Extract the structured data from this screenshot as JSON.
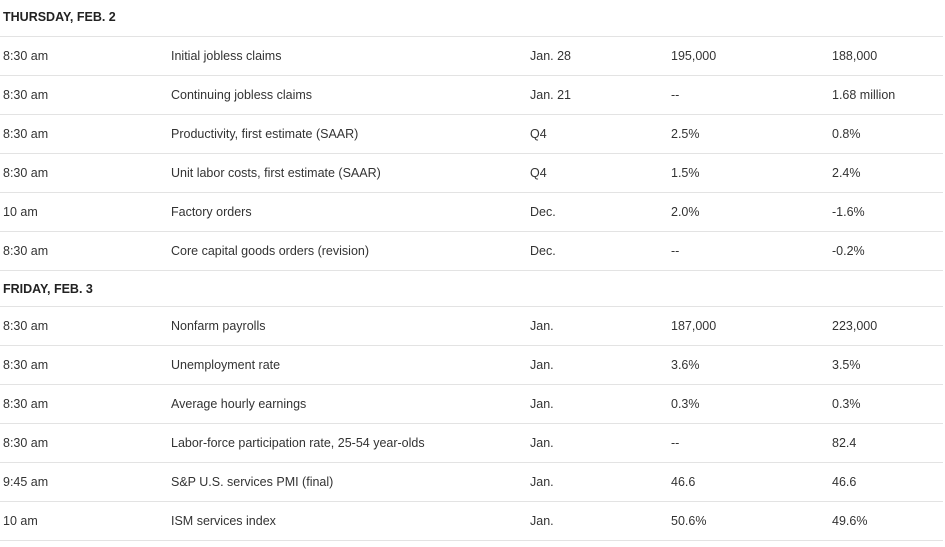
{
  "days": [
    {
      "header": "THURSDAY, FEB. 2",
      "rows": [
        {
          "time": "8:30 am",
          "report": "Initial jobless claims",
          "period": "Jan. 28",
          "median": "195,000",
          "previous": "188,000"
        },
        {
          "time": "8:30 am",
          "report": "Continuing jobless claims",
          "period": "Jan. 21",
          "median": "--",
          "previous": "1.68 million"
        },
        {
          "time": "8:30 am",
          "report": "Productivity, first estimate (SAAR)",
          "period": "Q4",
          "median": "2.5%",
          "previous": "0.8%"
        },
        {
          "time": "8:30 am",
          "report": "Unit labor costs, first estimate (SAAR)",
          "period": "Q4",
          "median": "1.5%",
          "previous": "2.4%"
        },
        {
          "time": "10 am",
          "report": "Factory orders",
          "period": "Dec.",
          "median": "2.0%",
          "previous": "-1.6%"
        },
        {
          "time": "8:30 am",
          "report": "Core capital goods orders (revision)",
          "period": "Dec.",
          "median": "--",
          "previous": "-0.2%"
        }
      ]
    },
    {
      "header": "FRIDAY, FEB. 3",
      "rows": [
        {
          "time": "8:30 am",
          "report": "Nonfarm payrolls",
          "period": "Jan.",
          "median": "187,000",
          "previous": "223,000"
        },
        {
          "time": "8:30 am",
          "report": "Unemployment rate",
          "period": "Jan.",
          "median": "3.6%",
          "previous": "3.5%"
        },
        {
          "time": "8:30 am",
          "report": "Average hourly earnings",
          "period": "Jan.",
          "median": "0.3%",
          "previous": "0.3%"
        },
        {
          "time": "8:30 am",
          "report": "Labor-force participation rate, 25-54 year-olds",
          "period": "Jan.",
          "median": "--",
          "previous": "82.4"
        },
        {
          "time": "9:45 am",
          "report": "S&P U.S. services PMI (final)",
          "period": "Jan.",
          "median": "46.6",
          "previous": "46.6"
        },
        {
          "time": "10 am",
          "report": "ISM services index",
          "period": "Jan.",
          "median": "50.6%",
          "previous": "49.6%"
        }
      ]
    }
  ]
}
